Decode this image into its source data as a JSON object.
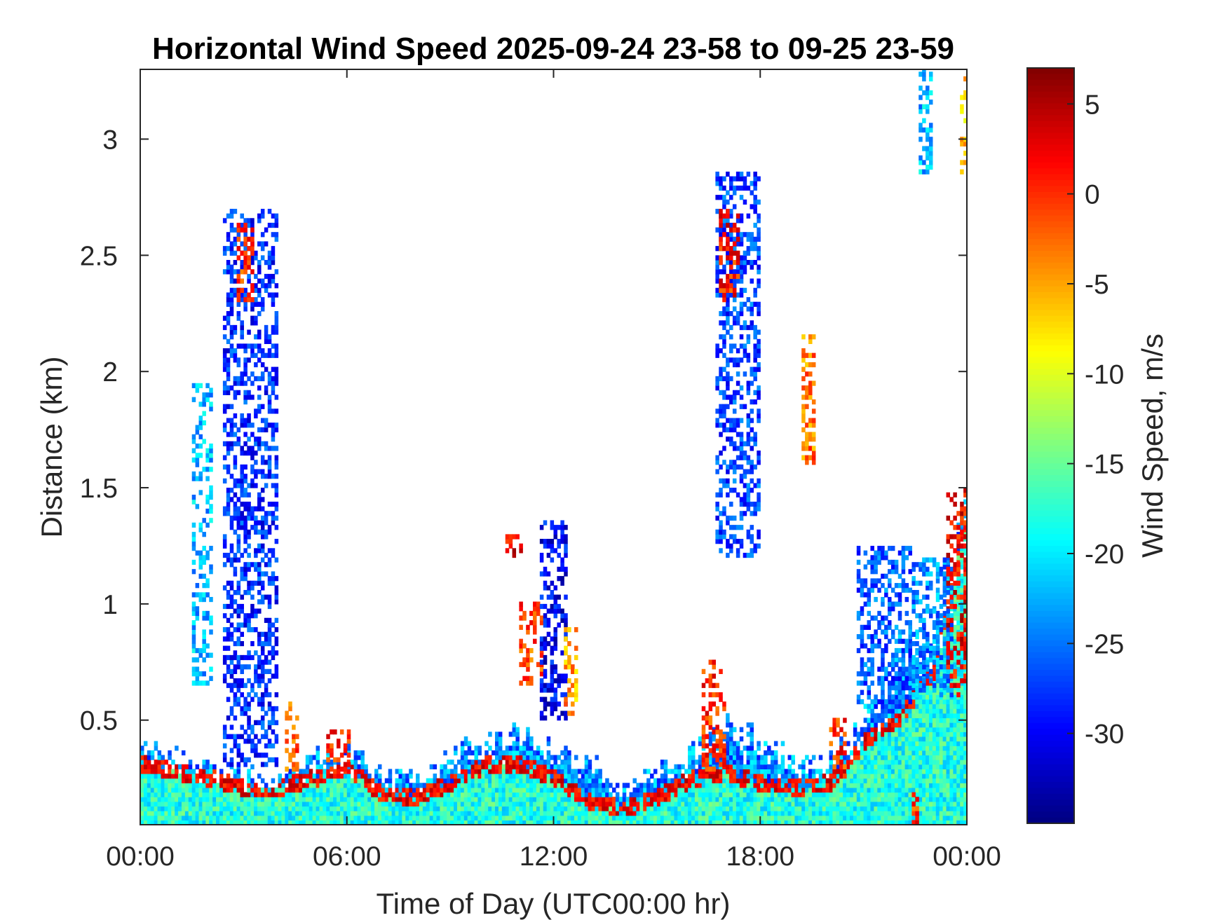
{
  "chart_data": {
    "type": "heatmap",
    "title": "Horizontal Wind Speed 2025-09-24 23-58 to 09-25 23-59",
    "xlabel": "Time of Day (UTC00:00 hr)",
    "ylabel": "Distance (km)",
    "x_ticks": [
      {
        "value": 0,
        "label": "00:00"
      },
      {
        "value": 6,
        "label": "06:00"
      },
      {
        "value": 12,
        "label": "12:00"
      },
      {
        "value": 18,
        "label": "18:00"
      },
      {
        "value": 24,
        "label": "00:00"
      }
    ],
    "y_ticks": [
      {
        "value": 0.5,
        "label": "0.5"
      },
      {
        "value": 1,
        "label": "1"
      },
      {
        "value": 1.5,
        "label": "1.5"
      },
      {
        "value": 2,
        "label": "2"
      },
      {
        "value": 2.5,
        "label": "2.5"
      },
      {
        "value": 3,
        "label": "3"
      }
    ],
    "xlim": [
      0,
      24
    ],
    "ylim": [
      0.05,
      3.3
    ],
    "colorbar": {
      "label": "Wind Speed, m/s",
      "colormap": "jet",
      "clim": [
        -35,
        7
      ],
      "ticks": [
        {
          "value": 5,
          "label": "5"
        },
        {
          "value": 0,
          "label": "0"
        },
        {
          "value": -5,
          "label": "-5"
        },
        {
          "value": -10,
          "label": "-10"
        },
        {
          "value": -15,
          "label": "-15"
        },
        {
          "value": -20,
          "label": "-20"
        },
        {
          "value": -25,
          "label": "-25"
        },
        {
          "value": -30,
          "label": "-30"
        }
      ]
    },
    "field": {
      "hours": [
        0,
        1,
        2,
        3,
        4,
        5,
        6,
        7,
        8,
        9,
        10,
        11,
        12,
        13,
        14,
        15,
        16,
        17,
        18,
        19,
        20,
        21,
        22,
        23,
        24
      ],
      "boundary_layer_top_km": [
        0.37,
        0.34,
        0.3,
        0.26,
        0.28,
        0.34,
        0.36,
        0.26,
        0.24,
        0.34,
        0.44,
        0.42,
        0.36,
        0.32,
        0.2,
        0.28,
        0.36,
        0.46,
        0.4,
        0.3,
        0.34,
        0.5,
        0.75,
        0.95,
        1.3
      ],
      "shear_band_km": [
        0.3,
        0.27,
        0.24,
        0.2,
        0.2,
        0.24,
        0.28,
        0.17,
        0.16,
        0.22,
        0.3,
        0.3,
        0.24,
        0.14,
        0.11,
        0.16,
        0.24,
        0.26,
        0.22,
        0.2,
        0.22,
        0.4,
        0.5,
        0.7,
        1.4
      ],
      "speed_surface": -18,
      "speed_shear": 2,
      "speed_aloft": -26
    },
    "patches": [
      {
        "t": [
          1.5,
          2.1
        ],
        "z": [
          0.65,
          1.95
        ],
        "v": -22
      },
      {
        "t": [
          2.4,
          4.0
        ],
        "z": [
          0.3,
          2.7
        ],
        "v": -28
      },
      {
        "t": [
          2.8,
          3.3
        ],
        "z": [
          2.3,
          2.65
        ],
        "v": 0
      },
      {
        "t": [
          4.2,
          4.5
        ],
        "z": [
          0.28,
          0.58
        ],
        "v": -2
      },
      {
        "t": [
          5.4,
          6.0
        ],
        "z": [
          0.26,
          0.45
        ],
        "v": 1
      },
      {
        "t": [
          10.6,
          11.0
        ],
        "z": [
          1.2,
          1.3
        ],
        "v": 3
      },
      {
        "t": [
          11.0,
          11.6
        ],
        "z": [
          0.65,
          1.0
        ],
        "v": -1
      },
      {
        "t": [
          11.6,
          12.3
        ],
        "z": [
          0.5,
          1.35
        ],
        "v": -30
      },
      {
        "t": [
          12.3,
          12.7
        ],
        "z": [
          0.5,
          0.9
        ],
        "v": -5
      },
      {
        "t": [
          16.3,
          17.0
        ],
        "z": [
          0.28,
          0.75
        ],
        "v": 0
      },
      {
        "t": [
          16.7,
          18.0
        ],
        "z": [
          1.2,
          2.85
        ],
        "v": -27
      },
      {
        "t": [
          16.8,
          17.4
        ],
        "z": [
          2.3,
          2.7
        ],
        "v": 1
      },
      {
        "t": [
          19.2,
          19.6
        ],
        "z": [
          1.6,
          2.15
        ],
        "v": -3
      },
      {
        "t": [
          20.0,
          20.5
        ],
        "z": [
          0.25,
          0.5
        ],
        "v": 0
      },
      {
        "t": [
          20.8,
          22.4
        ],
        "z": [
          0.55,
          1.25
        ],
        "v": -26
      },
      {
        "t": [
          22.4,
          23.6
        ],
        "z": [
          0.6,
          1.2
        ],
        "v": -24
      },
      {
        "t": [
          23.4,
          24.0
        ],
        "z": [
          0.6,
          1.5
        ],
        "v": 2
      },
      {
        "t": [
          22.6,
          23.0
        ],
        "z": [
          2.85,
          3.3
        ],
        "v": -22
      },
      {
        "t": [
          23.8,
          24.0
        ],
        "z": [
          2.85,
          3.3
        ],
        "v": -6
      },
      {
        "t": [
          22.4,
          22.6
        ],
        "z": [
          0.05,
          0.18
        ],
        "v": 0
      }
    ],
    "grid": false,
    "legend": "none"
  }
}
